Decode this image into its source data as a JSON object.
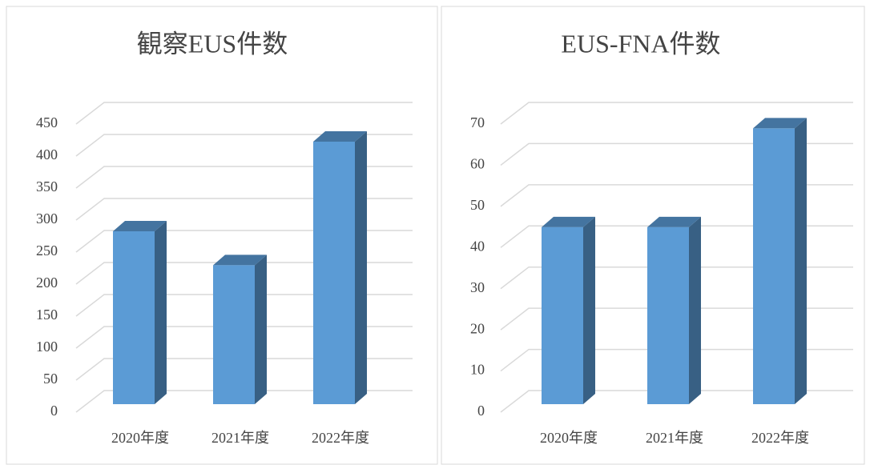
{
  "chart_data": [
    {
      "type": "bar3d",
      "title": "観察EUS件数",
      "categories": [
        "2020年度",
        "2021年度",
        "2022年度"
      ],
      "values": [
        270,
        217,
        410
      ],
      "color": "#5b9bd5",
      "ylim": [
        0,
        450
      ],
      "yticks": [
        0,
        50,
        100,
        150,
        200,
        250,
        300,
        350,
        400,
        450
      ],
      "grid": true
    },
    {
      "type": "bar3d",
      "title": "EUS-FNA件数",
      "categories": [
        "2020年度",
        "2021年度",
        "2022年度"
      ],
      "values": [
        43,
        43,
        67
      ],
      "color": "#5b9bd5",
      "ylim": [
        0,
        70
      ],
      "yticks": [
        0,
        10,
        20,
        30,
        40,
        50,
        60,
        70
      ],
      "grid": true
    }
  ]
}
